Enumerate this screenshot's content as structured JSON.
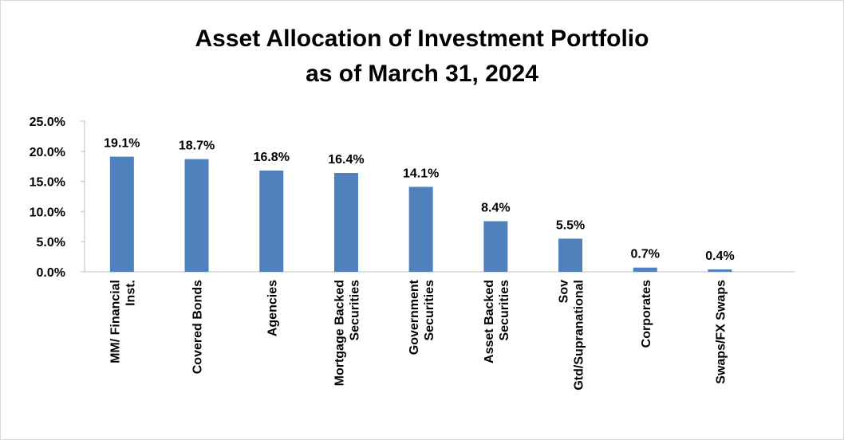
{
  "chart_data": {
    "type": "bar",
    "title": [
      "Asset Allocation of Investment Portfolio",
      "as of March 31, 2024"
    ],
    "categories": [
      "MM/ Financial\nInst.",
      "Covered Bonds",
      "Agencies",
      "Mortgage Backed\nSecurities",
      "Government\nSecurities",
      "Asset Backed\nSecurities",
      "Sov\nGtd/Supranational",
      "Corporates",
      "Swaps/FX Swaps"
    ],
    "values": [
      19.1,
      18.7,
      16.8,
      16.4,
      14.1,
      8.4,
      5.5,
      0.7,
      0.4
    ],
    "value_labels": [
      "19.1%",
      "18.7%",
      "16.8%",
      "16.4%",
      "14.1%",
      "8.4%",
      "5.5%",
      "0.7%",
      "0.4%"
    ],
    "color": "#4f81bd",
    "ylim": [
      0,
      25
    ],
    "yticks": [
      {
        "value": 0,
        "label": "0.0%"
      },
      {
        "value": 5,
        "label": "5.0%"
      },
      {
        "value": 10,
        "label": "10.0%"
      },
      {
        "value": 15,
        "label": "15.0%"
      },
      {
        "value": 20,
        "label": "20.0%"
      },
      {
        "value": 25,
        "label": "25.0%"
      }
    ],
    "grid": false
  }
}
